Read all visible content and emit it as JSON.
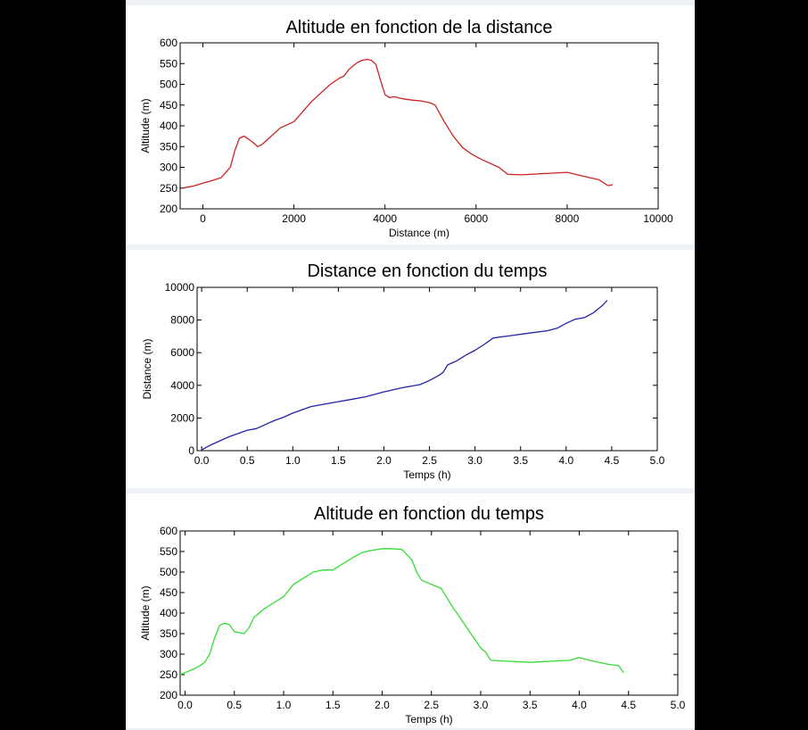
{
  "chart_data": [
    {
      "type": "line",
      "title": "Altitude en fonction de la distance",
      "xlabel": "Distance (m)",
      "ylabel": "Altitude (m)",
      "xlim": [
        -500,
        10000
      ],
      "ylim": [
        200,
        600
      ],
      "xticks": [
        0,
        2000,
        4000,
        6000,
        8000,
        10000
      ],
      "yticks": [
        200,
        250,
        300,
        350,
        400,
        450,
        500,
        550,
        600
      ],
      "xtick_labels": [
        "0",
        "2000",
        "4000",
        "6000",
        "8000",
        "10000"
      ],
      "ytick_labels": [
        "200",
        "250",
        "300",
        "350",
        "400",
        "450",
        "500",
        "550",
        "600"
      ],
      "color": "#cc2222",
      "grid": false,
      "series": [
        {
          "x": [
            -450,
            -200,
            0,
            200,
            400,
            600,
            700,
            800,
            900,
            1000,
            1100,
            1200,
            1300,
            1500,
            1700,
            1900,
            2000,
            2200,
            2400,
            2600,
            2800,
            3000,
            3100,
            3200,
            3300,
            3400,
            3500,
            3600,
            3700,
            3800,
            3900,
            4000,
            4100,
            4200,
            4400,
            4600,
            4800,
            5000,
            5100,
            5300,
            5500,
            5700,
            5900,
            6100,
            6300,
            6500,
            6700,
            7000,
            7500,
            8000,
            8500,
            8700,
            8900,
            9000
          ],
          "y": [
            250,
            255,
            262,
            268,
            275,
            300,
            340,
            370,
            375,
            368,
            360,
            350,
            355,
            375,
            395,
            405,
            410,
            435,
            460,
            480,
            500,
            515,
            520,
            535,
            545,
            553,
            558,
            560,
            558,
            548,
            510,
            475,
            468,
            470,
            465,
            462,
            460,
            455,
            450,
            410,
            375,
            348,
            332,
            320,
            310,
            300,
            283,
            282,
            285,
            288,
            275,
            270,
            256,
            258
          ]
        }
      ]
    },
    {
      "type": "line",
      "title": "Distance en fonction du temps",
      "xlabel": "Temps (h)",
      "ylabel": "Distance (m)",
      "xlim": [
        -0.05,
        5.0
      ],
      "ylim": [
        0,
        10000
      ],
      "xticks": [
        0.0,
        0.5,
        1.0,
        1.5,
        2.0,
        2.5,
        3.0,
        3.5,
        4.0,
        4.5,
        5.0
      ],
      "yticks": [
        0,
        2000,
        4000,
        6000,
        8000,
        10000
      ],
      "xtick_labels": [
        "0.0",
        "0.5",
        "1.0",
        "1.5",
        "2.0",
        "2.5",
        "3.0",
        "3.5",
        "4.0",
        "4.5",
        "5.0"
      ],
      "ytick_labels": [
        "0",
        "2000",
        "4000",
        "6000",
        "8000",
        "10000"
      ],
      "color": "#2222aa",
      "grid": false,
      "series": [
        {
          "x": [
            0.0,
            0.1,
            0.2,
            0.3,
            0.4,
            0.5,
            0.6,
            0.7,
            0.8,
            0.9,
            1.0,
            1.1,
            1.2,
            1.4,
            1.6,
            1.8,
            1.9,
            2.0,
            2.2,
            2.4,
            2.5,
            2.6,
            2.65,
            2.7,
            2.8,
            2.9,
            3.0,
            3.1,
            3.2,
            3.4,
            3.6,
            3.8,
            3.9,
            4.0,
            4.1,
            4.2,
            4.3,
            4.4,
            4.45
          ],
          "y": [
            50,
            350,
            600,
            850,
            1050,
            1250,
            1350,
            1600,
            1850,
            2050,
            2300,
            2500,
            2700,
            2900,
            3100,
            3300,
            3450,
            3600,
            3850,
            4050,
            4300,
            4600,
            4800,
            5250,
            5500,
            5850,
            6150,
            6500,
            6900,
            7050,
            7200,
            7350,
            7500,
            7800,
            8050,
            8150,
            8450,
            8900,
            9200
          ]
        }
      ]
    },
    {
      "type": "line",
      "title": "Altitude en fonction du temps",
      "xlabel": "Temps (h)",
      "ylabel": "Altitude (m)",
      "xlim": [
        -0.05,
        5.0
      ],
      "ylim": [
        200,
        600
      ],
      "xticks": [
        0.0,
        0.5,
        1.0,
        1.5,
        2.0,
        2.5,
        3.0,
        3.5,
        4.0,
        4.5,
        5.0
      ],
      "yticks": [
        200,
        250,
        300,
        350,
        400,
        450,
        500,
        550,
        600
      ],
      "xtick_labels": [
        "0.0",
        "0.5",
        "1.0",
        "1.5",
        "2.0",
        "2.5",
        "3.0",
        "3.5",
        "4.0",
        "4.5",
        "5.0"
      ],
      "ytick_labels": [
        "200",
        "250",
        "300",
        "350",
        "400",
        "450",
        "500",
        "550",
        "600"
      ],
      "color": "#33dd33",
      "grid": false,
      "series": [
        {
          "x": [
            -0.05,
            0.0,
            0.1,
            0.15,
            0.2,
            0.25,
            0.3,
            0.35,
            0.4,
            0.45,
            0.5,
            0.6,
            0.65,
            0.7,
            0.8,
            0.9,
            1.0,
            1.1,
            1.2,
            1.3,
            1.4,
            1.5,
            1.6,
            1.7,
            1.8,
            1.9,
            2.0,
            2.1,
            2.2,
            2.3,
            2.35,
            2.4,
            2.5,
            2.6,
            2.7,
            2.8,
            2.9,
            3.0,
            3.05,
            3.1,
            3.5,
            3.9,
            4.0,
            4.1,
            4.3,
            4.4,
            4.45
          ],
          "y": [
            250,
            255,
            265,
            272,
            280,
            300,
            340,
            370,
            375,
            372,
            355,
            350,
            365,
            390,
            410,
            425,
            440,
            470,
            485,
            500,
            505,
            505,
            520,
            535,
            548,
            553,
            557,
            557,
            555,
            530,
            500,
            480,
            470,
            460,
            420,
            385,
            350,
            315,
            305,
            285,
            280,
            285,
            292,
            285,
            275,
            272,
            255
          ]
        }
      ]
    }
  ]
}
